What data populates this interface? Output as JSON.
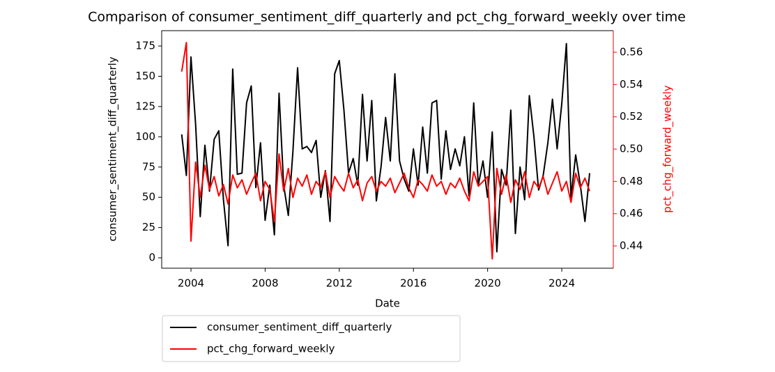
{
  "chart_data": {
    "type": "line",
    "title": "Comparison of consumer_sentiment_diff_quarterly and pct_chg_forward_weekly over time",
    "xlabel": "Date",
    "ylabel": "consumer_sentiment_diff_quarterly",
    "y2label": "pct_chg_forward_weekly",
    "x": [
      2003.5,
      2003.75,
      2004,
      2004.25,
      2004.5,
      2004.75,
      2005,
      2005.25,
      2005.5,
      2005.75,
      2006,
      2006.25,
      2006.5,
      2006.75,
      2007,
      2007.25,
      2007.5,
      2007.75,
      2008,
      2008.25,
      2008.5,
      2008.75,
      2009,
      2009.25,
      2009.5,
      2009.75,
      2010,
      2010.25,
      2010.5,
      2010.75,
      2011,
      2011.25,
      2011.5,
      2011.75,
      2012,
      2012.25,
      2012.5,
      2012.75,
      2013,
      2013.25,
      2013.5,
      2013.75,
      2014,
      2014.25,
      2014.5,
      2014.75,
      2015,
      2015.25,
      2015.5,
      2015.75,
      2016,
      2016.25,
      2016.5,
      2016.75,
      2017,
      2017.25,
      2017.5,
      2017.75,
      2018,
      2018.25,
      2018.5,
      2018.75,
      2019,
      2019.25,
      2019.5,
      2019.75,
      2020,
      2020.25,
      2020.5,
      2020.75,
      2021,
      2021.25,
      2021.5,
      2021.75,
      2022,
      2022.25,
      2022.5,
      2022.75,
      2023,
      2023.25,
      2023.5,
      2023.75,
      2024,
      2024.25,
      2024.5,
      2024.75,
      2025,
      2025.25,
      2025.5
    ],
    "series": [
      {
        "name": "consumer_sentiment_diff_quarterly",
        "color": "#000000",
        "values": [
          102,
          68,
          166,
          110,
          34,
          93,
          55,
          98,
          105,
          48,
          10,
          156,
          69,
          70,
          128,
          142,
          58,
          95,
          31,
          60,
          19,
          136,
          60,
          35,
          88,
          157,
          90,
          92,
          87,
          97,
          50,
          72,
          30,
          152,
          163,
          122,
          70,
          82,
          60,
          135,
          80,
          130,
          47,
          75,
          116,
          80,
          152,
          80,
          65,
          55,
          90,
          60,
          108,
          70,
          128,
          130,
          65,
          105,
          73,
          90,
          76,
          100,
          51,
          128,
          60,
          80,
          50,
          104,
          5,
          73,
          60,
          122,
          20,
          75,
          48,
          134,
          100,
          56,
          68,
          95,
          131,
          90,
          127,
          177,
          50,
          85,
          60,
          30,
          70
        ]
      },
      {
        "name": "pct_chg_forward_weekly",
        "color": "#ff0000",
        "axis": "y2",
        "values": [
          0.548,
          0.566,
          0.443,
          0.492,
          0.47,
          0.49,
          0.475,
          0.483,
          0.471,
          0.478,
          0.466,
          0.484,
          0.476,
          0.481,
          0.472,
          0.479,
          0.485,
          0.468,
          0.48,
          0.475,
          0.455,
          0.497,
          0.474,
          0.488,
          0.47,
          0.482,
          0.477,
          0.484,
          0.472,
          0.48,
          0.476,
          0.486,
          0.47,
          0.483,
          0.478,
          0.474,
          0.485,
          0.476,
          0.481,
          0.468,
          0.479,
          0.483,
          0.474,
          0.48,
          0.477,
          0.482,
          0.473,
          0.479,
          0.485,
          0.476,
          0.47,
          0.481,
          0.478,
          0.474,
          0.484,
          0.477,
          0.48,
          0.472,
          0.479,
          0.476,
          0.482,
          0.474,
          0.468,
          0.486,
          0.477,
          0.48,
          0.483,
          0.432,
          0.488,
          0.472,
          0.484,
          0.467,
          0.481,
          0.475,
          0.486,
          0.47,
          0.48,
          0.476,
          0.483,
          0.472,
          0.479,
          0.486,
          0.474,
          0.48,
          0.467,
          0.485,
          0.476,
          0.482,
          0.474
        ]
      }
    ],
    "xlim": [
      2002.42,
      2026.78
    ],
    "xticks": [
      2004,
      2008,
      2012,
      2016,
      2020,
      2024
    ],
    "ylim": [
      -8.6,
      187.7
    ],
    "yticks": [
      0,
      25,
      50,
      75,
      100,
      125,
      150,
      175
    ],
    "y2lim": [
      0.4262,
      0.5734
    ],
    "y2ticks": [
      0.44,
      0.46,
      0.48,
      {
        "value": 0.5,
        "label": "0.50"
      },
      0.52,
      0.54,
      0.56
    ],
    "y2color": "#ff0000"
  }
}
